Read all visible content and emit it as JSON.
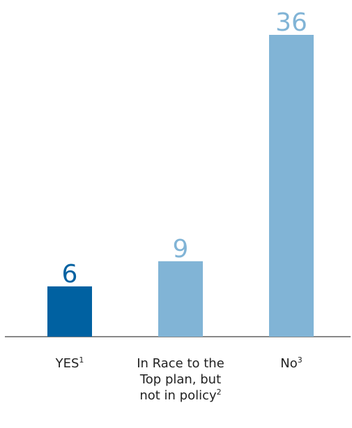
{
  "chart_data": {
    "type": "bar",
    "categories": [
      {
        "label_lines": [
          "YES"
        ],
        "footnote": "1"
      },
      {
        "label_lines": [
          "In Race to the",
          "Top plan, but",
          "not in policy"
        ],
        "footnote": "2"
      },
      {
        "label_lines": [
          "No"
        ],
        "footnote": "3"
      }
    ],
    "values": [
      6,
      9,
      36
    ],
    "data_labels": [
      "6",
      "9",
      "36"
    ],
    "colors": [
      "#0061a1",
      "#81b4d6",
      "#81b4d6"
    ],
    "ylim": [
      0,
      36
    ],
    "grid": false,
    "title": "",
    "xlabel": "",
    "ylabel": ""
  }
}
